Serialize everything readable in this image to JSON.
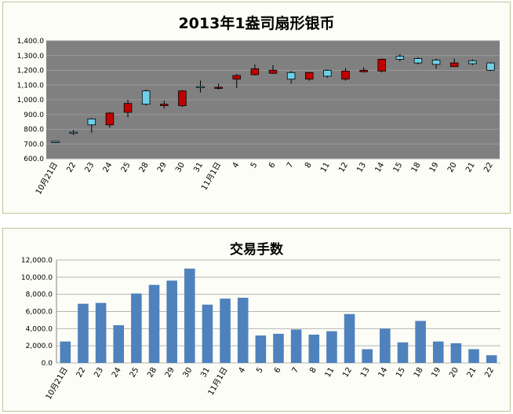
{
  "chart_data": [
    {
      "type": "candlestick",
      "title": "2013年1盎司扇形银币",
      "ylim": [
        600,
        1400
      ],
      "y_ticks": [
        "600.0",
        "700.0",
        "800.0",
        "900.0",
        "1,000.0",
        "1,100.0",
        "1,200.0",
        "1,300.0",
        "1,400.0"
      ],
      "categories": [
        "10月21日",
        "22",
        "23",
        "24",
        "25",
        "28",
        "29",
        "30",
        "31",
        "11月1日",
        "4",
        "5",
        "6",
        "7",
        "8",
        "11",
        "12",
        "13",
        "14",
        "15",
        "18",
        "19",
        "20",
        "21",
        "22"
      ],
      "ohlc": [
        {
          "open": 715,
          "high": 718,
          "low": 712,
          "close": 718
        },
        {
          "open": 780,
          "high": 795,
          "low": 760,
          "close": 780
        },
        {
          "open": 830,
          "high": 875,
          "low": 775,
          "close": 870
        },
        {
          "open": 910,
          "high": 915,
          "low": 810,
          "close": 830
        },
        {
          "open": 975,
          "high": 1000,
          "low": 880,
          "close": 915
        },
        {
          "open": 970,
          "high": 1070,
          "low": 960,
          "close": 1060
        },
        {
          "open": 970,
          "high": 995,
          "low": 940,
          "close": 960
        },
        {
          "open": 1060,
          "high": 1065,
          "low": 950,
          "close": 960
        },
        {
          "open": 1090,
          "high": 1130,
          "low": 1050,
          "close": 1090
        },
        {
          "open": 1085,
          "high": 1110,
          "low": 1070,
          "close": 1080
        },
        {
          "open": 1165,
          "high": 1175,
          "low": 1080,
          "close": 1140
        },
        {
          "open": 1210,
          "high": 1240,
          "low": 1165,
          "close": 1170
        },
        {
          "open": 1200,
          "high": 1235,
          "low": 1175,
          "close": 1180
        },
        {
          "open": 1140,
          "high": 1195,
          "low": 1110,
          "close": 1185
        },
        {
          "open": 1185,
          "high": 1190,
          "low": 1130,
          "close": 1140
        },
        {
          "open": 1160,
          "high": 1205,
          "low": 1150,
          "close": 1200
        },
        {
          "open": 1195,
          "high": 1215,
          "low": 1130,
          "close": 1140
        },
        {
          "open": 1200,
          "high": 1220,
          "low": 1185,
          "close": 1190
        },
        {
          "open": 1275,
          "high": 1280,
          "low": 1185,
          "close": 1195
        },
        {
          "open": 1275,
          "high": 1310,
          "low": 1260,
          "close": 1295
        },
        {
          "open": 1250,
          "high": 1290,
          "low": 1240,
          "close": 1280
        },
        {
          "open": 1240,
          "high": 1280,
          "low": 1210,
          "close": 1270
        },
        {
          "open": 1250,
          "high": 1280,
          "low": 1225,
          "close": 1225
        },
        {
          "open": 1245,
          "high": 1275,
          "low": 1235,
          "close": 1265
        },
        {
          "open": 1200,
          "high": 1255,
          "low": 1195,
          "close": 1250
        }
      ],
      "colors": {
        "up": "#6fd0e8",
        "down": "#c00000",
        "plot_bg": "#808080",
        "grid": "#9a9a9a"
      },
      "grid": true
    },
    {
      "type": "bar",
      "title": "交易手数",
      "ylim": [
        0,
        12000
      ],
      "y_ticks": [
        "0.0",
        "2,000.0",
        "4,000.0",
        "6,000.0",
        "8,000.0",
        "10,000.0",
        "12,000.0"
      ],
      "categories": [
        "10月21日",
        "22",
        "23",
        "24",
        "25",
        "28",
        "29",
        "30",
        "31",
        "11月1日",
        "4",
        "5",
        "6",
        "7",
        "8",
        "11",
        "12",
        "13",
        "14",
        "15",
        "18",
        "19",
        "20",
        "21",
        "22"
      ],
      "values": [
        2500,
        6900,
        7000,
        4400,
        8100,
        9100,
        9600,
        11000,
        6800,
        7500,
        7600,
        3200,
        3400,
        3900,
        3300,
        3700,
        5700,
        1600,
        4000,
        2400,
        4900,
        2500,
        2300,
        1600,
        900
      ],
      "colors": {
        "bar": "#4f81bd",
        "grid": "#b7b7b7"
      },
      "grid": true
    }
  ]
}
